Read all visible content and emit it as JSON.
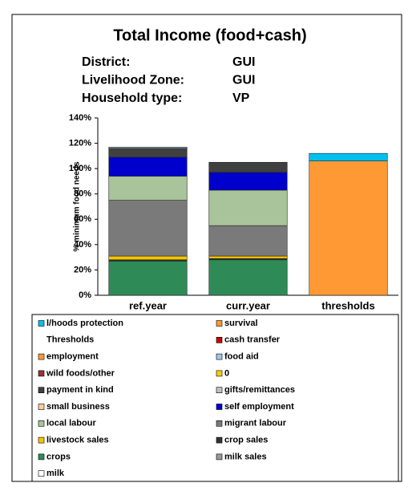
{
  "chart_data": {
    "type": "bar",
    "stacked": true,
    "title": "Total Income (food+cash)",
    "info": [
      {
        "label": "District:",
        "value": "GUI"
      },
      {
        "label": "Livelihood Zone:",
        "value": "GUI"
      },
      {
        "label": "Household type:",
        "value": "VP"
      }
    ],
    "y_label": "% minimum food needs",
    "categories": [
      "ref.year",
      "curr.year",
      "thresholds"
    ],
    "ylim": [
      0,
      140
    ],
    "yticks": [
      {
        "value": 0,
        "label": "0%"
      },
      {
        "value": 20,
        "label": "20%"
      },
      {
        "value": 40,
        "label": "40%"
      },
      {
        "value": 60,
        "label": "60%"
      },
      {
        "value": 80,
        "label": "80%"
      },
      {
        "value": 100,
        "label": "100%"
      },
      {
        "value": 120,
        "label": "120%"
      },
      {
        "value": 140,
        "label": "140%"
      }
    ],
    "series": [
      {
        "name": "l/hoods protection",
        "color": "#00c0f0",
        "values": [
          0,
          0,
          6
        ]
      },
      {
        "name": "survival",
        "color": "#ff9933",
        "values": [
          0,
          0,
          106
        ]
      },
      {
        "name": "Thresholds",
        "color": "none",
        "values": [
          0,
          0,
          0
        ]
      },
      {
        "name": "cash transfer",
        "color": "#cc0000",
        "values": [
          0,
          0,
          0
        ]
      },
      {
        "name": "employment",
        "color": "#ff9933",
        "values": [
          0,
          0,
          0
        ]
      },
      {
        "name": "food aid",
        "color": "#9ec8e8",
        "values": [
          1,
          0,
          0
        ]
      },
      {
        "name": "wild foods/other",
        "color": "#993333",
        "values": [
          0,
          0,
          0
        ]
      },
      {
        "name": "0",
        "color": "#ffcc00",
        "values": [
          0,
          0,
          0
        ]
      },
      {
        "name": "payment in kind",
        "color": "#404040",
        "values": [
          7,
          8,
          0
        ]
      },
      {
        "name": "gifts/remittances",
        "color": "#c0c0c0",
        "values": [
          0,
          0,
          0
        ]
      },
      {
        "name": "small business",
        "color": "#ffcc99",
        "values": [
          0,
          0,
          0
        ]
      },
      {
        "name": "self employment",
        "color": "#0000cc",
        "values": [
          15,
          14,
          0
        ]
      },
      {
        "name": "local labour",
        "color": "#a9c39b",
        "values": [
          19,
          28,
          0
        ]
      },
      {
        "name": "migrant labour",
        "color": "#7a7a7a",
        "values": [
          44,
          24,
          0
        ]
      },
      {
        "name": "livestock sales",
        "color": "#f5c400",
        "values": [
          3,
          2,
          0
        ]
      },
      {
        "name": "crop sales",
        "color": "#333333",
        "values": [
          1,
          1,
          0
        ]
      },
      {
        "name": "crops",
        "color": "#2e8b57",
        "values": [
          27,
          28,
          0
        ]
      },
      {
        "name": "milk sales",
        "color": "#999999",
        "values": [
          0,
          0,
          0
        ]
      },
      {
        "name": "milk",
        "color": "#ffffff",
        "values": [
          0,
          0,
          0
        ]
      }
    ]
  }
}
